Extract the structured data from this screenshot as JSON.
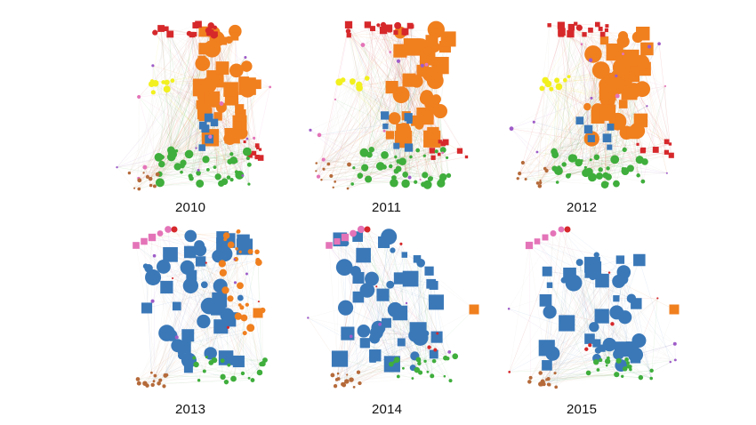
{
  "figure": {
    "panels": [
      {
        "label": "2010",
        "dominant": "orange"
      },
      {
        "label": "2011",
        "dominant": "orange"
      },
      {
        "label": "2012",
        "dominant": "orange"
      },
      {
        "label": "2013",
        "dominant": "blue"
      },
      {
        "label": "2014",
        "dominant": "blue"
      },
      {
        "label": "2015",
        "dominant": "blue"
      }
    ],
    "colors": {
      "orange": "#f07f1e",
      "blue": "#3a78b8",
      "green": "#3fae3c",
      "red": "#d6282b",
      "yellow": "#f2f01e",
      "pink": "#e474b8",
      "purple": "#9e5cc8",
      "brown": "#b56a3a",
      "edge": "#c9c2b8"
    }
  }
}
